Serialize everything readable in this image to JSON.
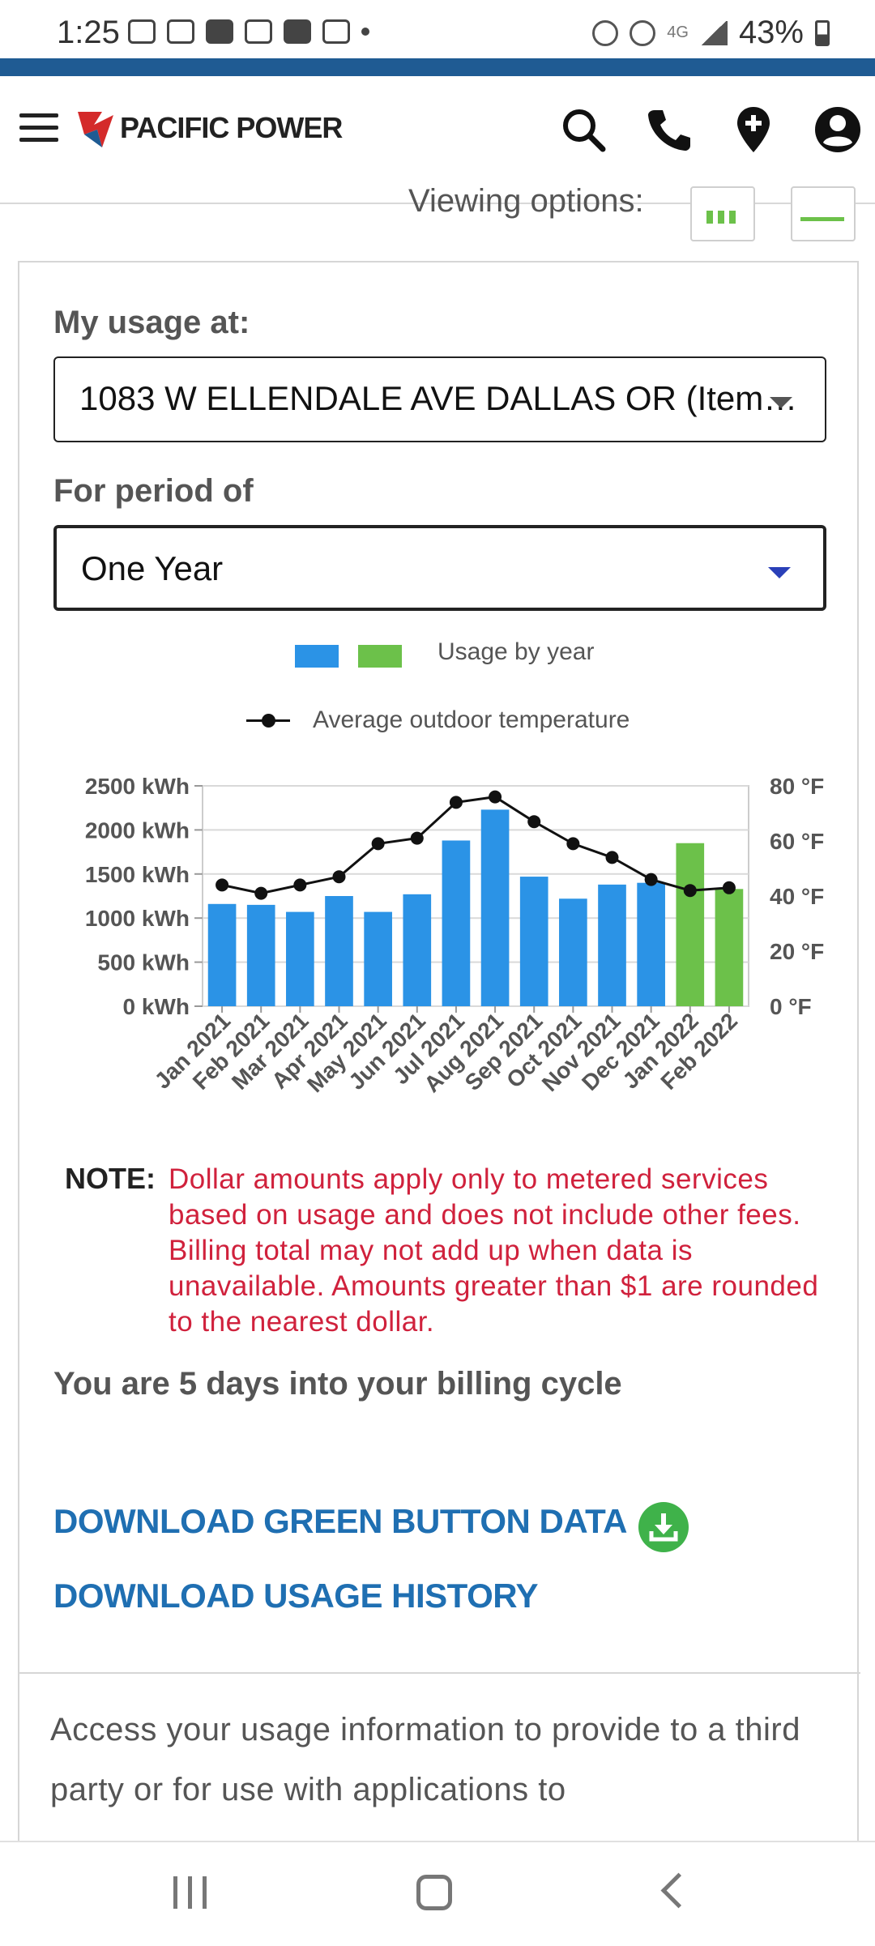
{
  "status_bar": {
    "time": "1:25",
    "network": "4G",
    "battery": "43%"
  },
  "header": {
    "brand": "PACIFIC POWER",
    "brand_color": "#1f5b93",
    "icons": [
      "menu-icon",
      "search-icon",
      "phone-icon",
      "location-icon",
      "account-icon"
    ]
  },
  "viewing_options": {
    "label": "Viewing options:"
  },
  "usage": {
    "address_label": "My usage at:",
    "address_value": "1083 W ELLENDALE AVE DALLAS OR (Item…",
    "period_label": "For period of",
    "period_value": "One Year"
  },
  "legend": {
    "usage_label": "Usage by year",
    "temp_label": "Average outdoor temperature"
  },
  "chart_data": {
    "type": "bar",
    "categories": [
      "Jan 2021",
      "Feb 2021",
      "Mar 2021",
      "Apr 2021",
      "May 2021",
      "Jun 2021",
      "Jul 2021",
      "Aug 2021",
      "Sep 2021",
      "Oct 2021",
      "Nov 2021",
      "Dec 2021",
      "Jan 2022",
      "Feb 2022"
    ],
    "series": [
      {
        "name": "Usage by year",
        "axis": "left",
        "values": [
          1160,
          1150,
          1070,
          1250,
          1070,
          1270,
          1880,
          2230,
          1470,
          1220,
          1380,
          1400,
          1850,
          1330
        ],
        "colors": [
          "#2b93e6",
          "#2b93e6",
          "#2b93e6",
          "#2b93e6",
          "#2b93e6",
          "#2b93e6",
          "#2b93e6",
          "#2b93e6",
          "#2b93e6",
          "#2b93e6",
          "#2b93e6",
          "#2b93e6",
          "#6cc14a",
          "#6cc14a"
        ]
      },
      {
        "name": "Average outdoor temperature",
        "axis": "right",
        "type": "line",
        "values": [
          44,
          41,
          44,
          47,
          59,
          61,
          74,
          76,
          67,
          59,
          54,
          46,
          42,
          43
        ]
      }
    ],
    "ylim": [
      0,
      2500
    ],
    "y2lim": [
      0,
      80
    ],
    "yticks": [
      "0 kWh",
      "500 kWh",
      "1000 kWh",
      "1500 kWh",
      "2000 kWh",
      "2500 kWh"
    ],
    "y2ticks": [
      "0 °F",
      "20 °F",
      "40 °F",
      "60 °F",
      "80 °F"
    ],
    "grid": true
  },
  "note": {
    "label": "NOTE:",
    "text": "Dollar amounts apply only to metered services based on usage and does not include other fees. Billing total may not add up when data is unavailable. Amounts greater than $1 are rounded to the nearest dollar."
  },
  "billing_cycle": "You are 5 days into your billing cycle",
  "links": {
    "green_button": "DOWNLOAD GREEN BUTTON DATA",
    "usage_history": "DOWNLOAD USAGE HISTORY"
  },
  "access_text": "Access your usage information to provide to a third party or for use with applications to"
}
